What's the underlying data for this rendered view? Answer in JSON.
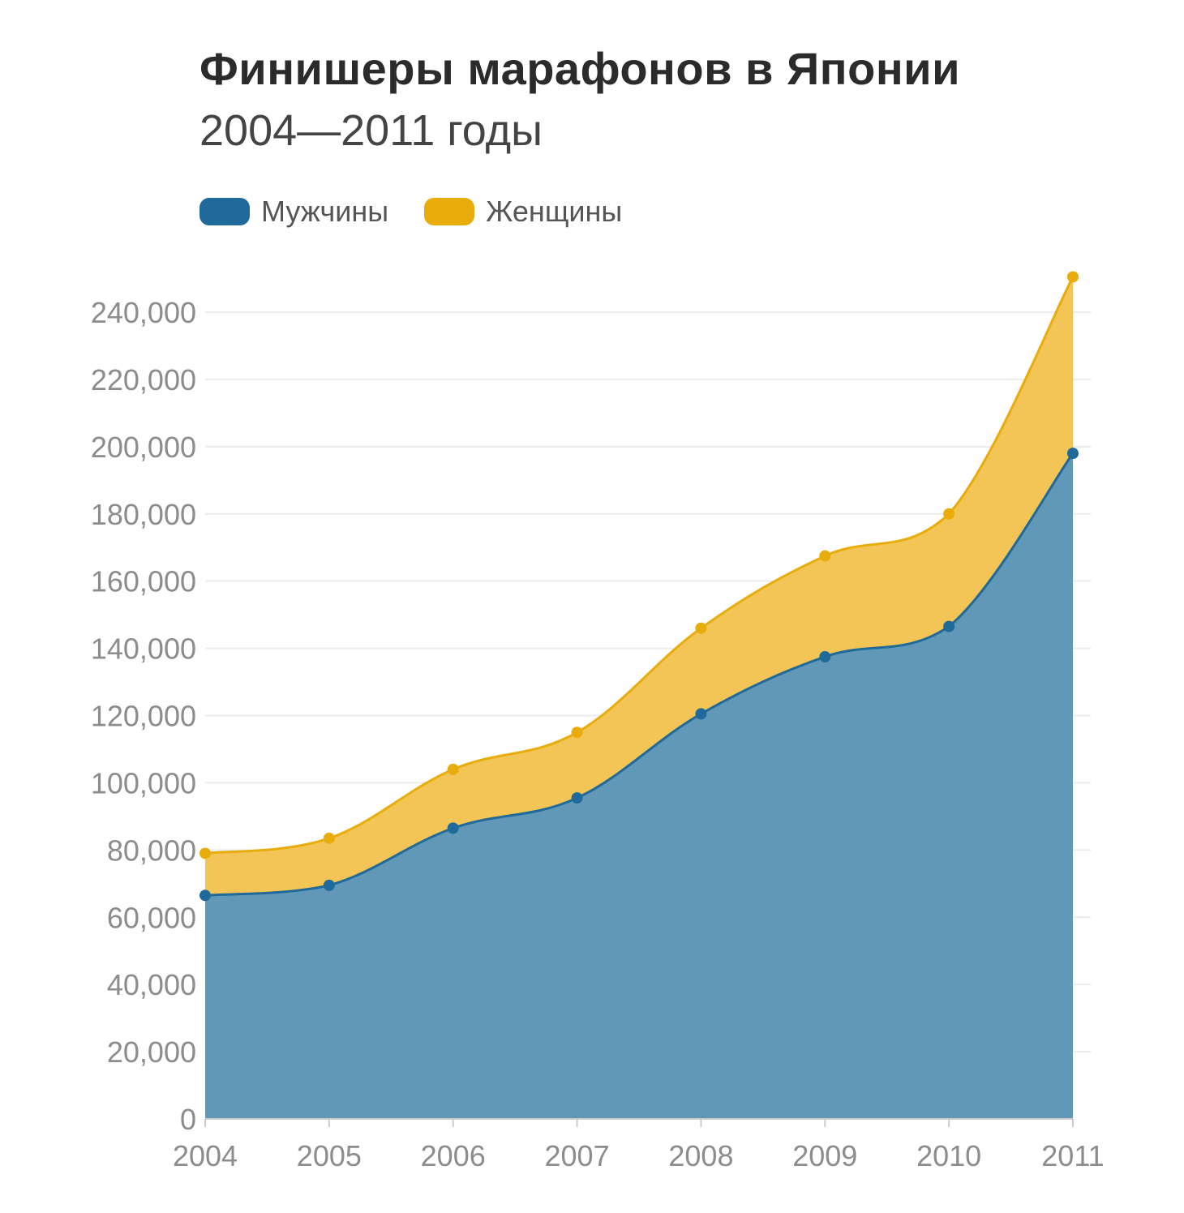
{
  "title": "Финишеры марафонов в Японии",
  "subtitle": "2004—2011 годы",
  "legend": [
    {
      "label": "Мужчины",
      "color": "#1f6a9a"
    },
    {
      "label": "Женщины",
      "color": "#e8ac0c"
    }
  ],
  "chart_data": {
    "type": "area",
    "stacked": true,
    "title": "Финишеры марафонов в Японии",
    "subtitle": "2004—2011 годы",
    "categories": [
      "2004",
      "2005",
      "2006",
      "2007",
      "2008",
      "2009",
      "2010",
      "2011"
    ],
    "series": [
      {
        "name": "Мужчины",
        "values": [
          66500,
          69500,
          86500,
          95500,
          120500,
          137500,
          146500,
          198000
        ],
        "color": "#1f6a9a",
        "fill": "#6198b8"
      },
      {
        "name": "Женщины",
        "values": [
          12500,
          14000,
          17500,
          19500,
          25500,
          30000,
          33500,
          52500
        ],
        "color": "#e8ac0c",
        "fill": "#f2c556"
      }
    ],
    "totals": [
      79000,
      83500,
      104000,
      115000,
      146000,
      167500,
      180000,
      250500
    ],
    "yticks": [
      "0",
      "20,000",
      "40,000",
      "60,000",
      "80,000",
      "100,000",
      "120,000",
      "140,000",
      "160,000",
      "180,000",
      "200,000",
      "220,000",
      "240,000"
    ],
    "ylim": [
      0,
      240000
    ],
    "xlabel": "",
    "ylabel": "",
    "grid": true,
    "legend_position": "top-left"
  }
}
